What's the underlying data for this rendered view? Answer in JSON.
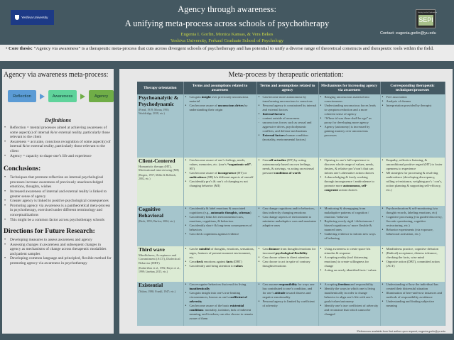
{
  "header": {
    "title1": "Agency through awareness:",
    "title2": "A unifying meta-process across schools of psychotherapy",
    "authors": "Eugenia I. Gorlin, Monica Kansas, & Vera Bekes",
    "affiliation": "Yeshiva University, Ferkauf Graduate School of Psychology",
    "logo_text": "Yeshiva University",
    "sepi_logo": "SEPI",
    "contact": "Contact: eugenia.gorlin@yu.edu"
  },
  "thesis": {
    "label": "Core thesis:",
    "text": " “Agency via awareness” is a therapeutic meta-process that cuts across divergent schools of psychotherapy and has potential to unify a diverse range of theoretical constructs and therapeutic tools within the field."
  },
  "left": {
    "title": "Agency via awareness meta-process:",
    "flow": [
      {
        "label": "Reflection",
        "color": "#5b9bd5"
      },
      {
        "label": "Awareness",
        "color": "#5fd39b"
      },
      {
        "label": "Agency",
        "color": "#70ad47"
      }
    ],
    "definitions_title": "Definitions",
    "definitions": [
      "Reflection = mental processes aimed at achieving awareness of some aspect(s) of internal &/or external reality, particularly those relevant to the client",
      "Awareness = accurate, conscious recognition of some aspect(s) of internal &/or external reality, particularly those relevant to the client",
      "Agency = capacity to shape one’s life and experience"
    ],
    "conclusions_title": "Conclusions:",
    "conclusions": [
      "Techniques that promote reflection on internal psychological processes increase awareness of previously unacknowledged emotions, thoughts, wishes",
      "Increased awareness of internal and external reality is linked to greater sense of agency",
      "Greater agency is linked to positive psychological consequences",
      "Promoting agency via awareness is a pantheoretical meta-process in psychotherapy, exercised under different terminology and conceptualizations",
      "This might be a common factor across psychotherapy schools"
    ],
    "future_title": "Directions for Future Research:",
    "future": [
      "Developing measures to assess awareness and agency",
      "Assessing changes in awareness and subsequent changes in agency as mechanisms of change across therapeutic modalities and patient samples",
      "Developing common language and principled, flexible method for promoting agency via awareness in psychotherapy"
    ]
  },
  "table": {
    "title": "Meta-process by therapeutic orientation:",
    "headers": [
      "Therapy orientation",
      "Terms and assumptions related to awareness",
      "Terms and assumptions related to agency",
      "Mechanisms for increasing agency via awareness",
      "Corresponding therapeutic techniques/processes"
    ],
    "rows": [
      {
        "color": "blue",
        "name": "Psychoanalytic & Psychodynamic",
        "sub": "",
        "refs": "(Freud, 1919; Moran, 1993; Wooldridge, 2018, etc.)",
        "cells": [
          [
            {
              "t": "Can gain insight over previously unconscious material",
              "b": [
                "insight"
              ]
            },
            {
              "t": "Can become aware of unconscious drives by understanding their origin",
              "b": [
                "unconscious drives"
              ]
            }
          ],
          [
            {
              "t": "Can become more autonomous by transforming unconscious to conscious"
            },
            {
              "t": "Personal agency is constrained by internal and external factors"
            },
            {
              "t": "Internal factors:",
              "b": [
                "Internal factors:"
              ]
            },
            {
              "t": "content outside of awareness",
              "dash": true
            },
            {
              "t": "unconscious forces such as sexual and aggressive drives, psychodynamic conflicts, and defense mechanisms",
              "dash": true
            },
            {
              "t": "External factors: human condition (mortality, environmental factors)",
              "b": [
                "External factors:"
              ]
            }
          ],
          [
            {
              "t": "Bringing unconscious material into consciousness"
            },
            {
              "t": "Understanding unconscious forces leads to symptom reduction and a more coherent sense of agency"
            },
            {
              "t": "“Where id was there shall be ego” as proxy for developing more agency"
            },
            {
              "t": "Agency (autonomy) is increased by gaining mastery over unconscious processes"
            }
          ],
          [
            {
              "t": "Free association"
            },
            {
              "t": "Analysis of dreams"
            },
            {
              "t": "Interpretation provided by therapist"
            }
          ]
        ]
      },
      {
        "color": "green",
        "name": "Client-Centered",
        "sub": "Humanistic therapy (HT), Motivational interviewing (MI)",
        "refs": "(Rogers, 1957; Miller & Rollnick, 2002, etc.)",
        "cells": [
          [
            {
              "t": "Can become aware of one’s feelings, needs, values, memories, etc. (one’s “organismic self”; HT)",
              "b": [
                "“organismic self”"
              ]
            },
            {
              "t": "Can become aware of incongruence (HT) or ambivalence (MI) b/n different aspects of oneself",
              "b": [
                "incongruence",
                "ambivalence"
              ]
            },
            {
              "t": "Can identify pro’s & con’s of changing vs not changing behavior (MI)"
            }
          ],
          [
            {
              "t": "Can self-actualize (HT) by acting autonomously based on own feelings, needs, & strivings, vs acting on external pressure/conditions of worth",
              "b": [
                "self-actualize",
                "conditions of worth"
              ]
            }
          ],
          [
            {
              "t": "Opening to one’s full experience to discover whole range of values, needs, desires, & relative pro’s/con’s that can inform one’s alternative action choices"
            },
            {
              "t": "Acknowledging & freely working through incongruence / ambivalence to promote more autonomous, self-congruent action choices",
              "b": [
                "autonomous,",
                "self-congruent"
              ]
            }
          ],
          [
            {
              "t": "Empathy, reflective listening, & unconditional positive regard (HT) to foster openness to experience"
            },
            {
              "t": "MI strategies for processing & resolving ambivalence (developing discrepancy, rolling w/resistance, weighing pro’s / con’s, action planning & supporting self-efficacy, etc.)"
            }
          ]
        ]
      },
      {
        "color": "blue",
        "name": "Cognitive Behavioral",
        "sub": "",
        "refs": "(Beck, 1991; Barlow, 2004; etc.)",
        "cells": [
          [
            {
              "t": "Can identify & label emotions & associated cognitions (e.g., automatic thoughts, schemas)",
              "b": [
                "automatic thoughts, schemas"
              ]
            },
            {
              "t": "Can identify links b/n environmental cues, emotions, cognitions, & behaviors"
            },
            {
              "t": "Can identify short- & long-term consequences of behaviors"
            },
            {
              "t": "Can check cognitions against evidence"
            }
          ],
          [
            {
              "t": "Can change cognitions and/or behaviors, thus indirectly changing emotions"
            },
            {
              "t": "Can change aspects of environment to minimize maladaptive cues and maximize adaptive ones"
            }
          ],
          [
            {
              "t": "Monitoring & disengaging from maladaptive patterns of cognition / emotion / behavior"
            },
            {
              "t": "Replacing overly rigid / dichotomous / biased cognitions w/ more flexible & nuanced ones"
            },
            {
              "t": "Gathering evidence to inform new ways of behaving"
            }
          ],
          [
            {
              "t": "Psychoeducation & self-monitoring (via thought records, labeling emotions, etc)"
            },
            {
              "t": "Cognitive processing (via guided discovery, Socratic questioning, cognitive restructuring, etc.)"
            },
            {
              "t": "Behavior experiments (via exposure, behavioral activation, etc.)"
            }
          ]
        ]
      },
      {
        "color": "green",
        "name": "Third wave",
        "sub": "Mindfulness, Acceptance and Commitment (ACT), Dialectical Behavior (DBT)",
        "refs": "(Kabat-Zinn et al., 1992; Hayes et al., 1999; Linehan, 2015, etc.)",
        "cells": [
          [
            {
              "t": "Can be mindful of thoughts, emotions, sensations, urges, features of present-moment environment, etc.",
              "b": [
                "mindful"
              ]
            },
            {
              "t": "Can check emotions against facts (DBT)",
              "b": [
                "check",
                "facts"
              ]
            },
            {
              "t": "Can identify and bring attention to values",
              "b": [
                "values"
              ]
            }
          ],
          [
            {
              "t": "Can distance from thoughts/emotions for increased psychological flexibility",
              "b": [
                "distance",
                "psychological flexibility"
              ]
            },
            {
              "t": "Can choose where to direct attention"
            },
            {
              "t": "Can choose to act in spite of contrary thoughts/emotions"
            }
          ],
          [
            {
              "t": "Using awareness to create space b/n stimulus & response"
            },
            {
              "t": "Accepting reality (incl distressing emotions) to create willingness for change"
            },
            {
              "t": "Acting on newly identified facts / values"
            }
          ],
          [
            {
              "t": "Mindfulness practice, cognitive defusion"
            },
            {
              "t": "(Radical) acceptance, distress tolerance, checking the facts, wise mind"
            },
            {
              "t": "Opposite action (DBT), committed action (ACT)"
            }
          ]
        ]
      },
      {
        "color": "blue",
        "name": "Existential",
        "sub": "",
        "refs": "(Yalom, 1980; Frankl, 1947; etc.)",
        "cells": [
          [
            {
              "t": "Can recognize behaviors that result in living inauthentically",
              "b": [
                "inauthentically"
              ]
            },
            {
              "t": "Can gain insight into one’s true limiting circumstances, known as one’s coefficient of adversity",
              "b": [
                "coefficient of adversity"
              ]
            },
            {
              "t": "Can become aware of the basic existential conditions: mortality, isolation, lack of inherent meaning, and freedom; can also choose to remain aware of them",
              "b": [
                "existential conditions"
              ]
            }
          ],
          [
            {
              "t": "Can assume responsibility for ways one has contributed to one’s condition, and for one’s attitude toward distress and negative emotionality",
              "b": [
                "responsibility",
                "attitude"
              ]
            },
            {
              "t": "Personal agency is limited by coefficient of adversity"
            }
          ],
          [
            {
              "t": "Accepting freedom and responsibility",
              "b": [
                "freedom"
              ]
            },
            {
              "t": "Identify the ways in which one is living inauthentically in order to change behavior to align one’s life with one’s goals/values/autonomy"
            },
            {
              "t": "Identify one’s true coefficient of adversity and reconstrue that which cannot be changed"
            }
          ],
          [
            {
              "t": "Understanding of how the individual has created their distressful situation"
            },
            {
              "t": "Illumination of here-and-now instances and methods of responsibility avoidance"
            },
            {
              "t": "Understanding and finding subjective meaning"
            }
          ]
        ]
      }
    ],
    "footnote": "*References available from first author upon request; eugenia.gorlin@yu.edu"
  }
}
